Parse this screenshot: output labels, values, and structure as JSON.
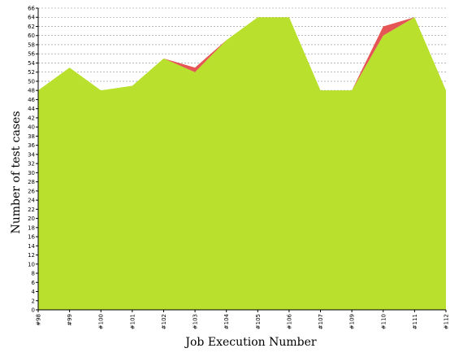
{
  "chart_data": {
    "type": "area",
    "title": "",
    "xlabel": "Job Execution Number",
    "ylabel": "Number of test cases",
    "x": [
      "#98",
      "#99",
      "#100",
      "#101",
      "#102",
      "#103",
      "#104",
      "#105",
      "#106",
      "#107",
      "#109",
      "#110",
      "#111",
      "#112"
    ],
    "series": [
      {
        "name": "",
        "color": "#b8e02c",
        "values": [
          48,
          53,
          48,
          49,
          55,
          52,
          59,
          64,
          64,
          48,
          48,
          60,
          64,
          48
        ]
      },
      {
        "name": "",
        "color": "#e65555",
        "values": [
          0,
          0,
          0,
          0,
          0,
          1,
          0,
          0,
          0,
          0,
          0,
          2,
          0,
          0
        ]
      }
    ],
    "ylim": [
      0,
      66
    ],
    "yticks": [
      0,
      2,
      4,
      6,
      8,
      10,
      12,
      14,
      16,
      18,
      20,
      22,
      24,
      26,
      28,
      30,
      32,
      34,
      36,
      38,
      40,
      42,
      44,
      46,
      48,
      50,
      52,
      54,
      56,
      58,
      60,
      62,
      64,
      66
    ],
    "grid": true,
    "stacked": true
  }
}
